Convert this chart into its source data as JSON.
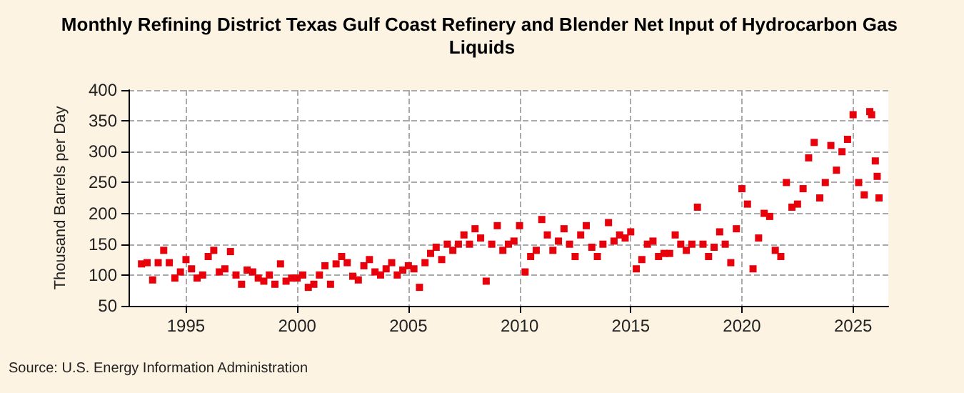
{
  "chart_data": {
    "type": "scatter",
    "title": "Monthly Refining District Texas Gulf Coast Refinery and Blender Net Input of Hydrocarbon Gas Liquids",
    "ylabel": "Thousand Barrels per Day",
    "annotations": [
      "Source: U.S. Energy Information Administration"
    ],
    "x": [
      "1993-01",
      "1993-04",
      "1993-07",
      "1993-10",
      "1994-01",
      "1994-04",
      "1994-07",
      "1994-10",
      "1995-01",
      "1995-04",
      "1995-07",
      "1995-10",
      "1996-01",
      "1996-04",
      "1996-07",
      "1996-10",
      "1997-01",
      "1997-04",
      "1997-07",
      "1997-10",
      "1998-01",
      "1998-04",
      "1998-07",
      "1998-10",
      "1999-01",
      "1999-04",
      "1999-07",
      "1999-10",
      "2000-01",
      "2000-04",
      "2000-07",
      "2000-10",
      "2001-01",
      "2001-04",
      "2001-07",
      "2001-10",
      "2002-01",
      "2002-04",
      "2002-07",
      "2002-10",
      "2003-01",
      "2003-04",
      "2003-07",
      "2003-10",
      "2004-01",
      "2004-04",
      "2004-07",
      "2004-10",
      "2005-01",
      "2005-04",
      "2005-07",
      "2005-10",
      "2006-01",
      "2006-04",
      "2006-07",
      "2006-10",
      "2007-01",
      "2007-04",
      "2007-07",
      "2007-10",
      "2008-01",
      "2008-04",
      "2008-07",
      "2008-10",
      "2009-01",
      "2009-04",
      "2009-07",
      "2009-10",
      "2010-01",
      "2010-04",
      "2010-07",
      "2010-10",
      "2011-01",
      "2011-04",
      "2011-07",
      "2011-10",
      "2012-01",
      "2012-04",
      "2012-07",
      "2012-10",
      "2013-01",
      "2013-04",
      "2013-07",
      "2013-10",
      "2014-01",
      "2014-04",
      "2014-07",
      "2014-10",
      "2015-01",
      "2015-04",
      "2015-07",
      "2015-10",
      "2016-01",
      "2016-04",
      "2016-07",
      "2016-10",
      "2017-01",
      "2017-04",
      "2017-07",
      "2017-10",
      "2018-01",
      "2018-04",
      "2018-07",
      "2018-10",
      "2019-01",
      "2019-04",
      "2019-07",
      "2019-10",
      "2020-01",
      "2020-04",
      "2020-07",
      "2020-10",
      "2021-01",
      "2021-04",
      "2021-07",
      "2021-10",
      "2022-01",
      "2022-04",
      "2022-07",
      "2022-10",
      "2023-01",
      "2023-04",
      "2023-07",
      "2023-10",
      "2024-01",
      "2024-04",
      "2024-07",
      "2024-10",
      "2025-01",
      "2025-04",
      "2025-07",
      "2025-10",
      "2025-11",
      "2026-01",
      "2026-02",
      "2026-03"
    ],
    "series": [
      {
        "color": "#e8000b",
        "values": [
          118,
          120,
          92,
          120,
          140,
          120,
          95,
          105,
          125,
          110,
          95,
          100,
          130,
          140,
          105,
          110,
          138,
          100,
          85,
          108,
          105,
          95,
          90,
          100,
          85,
          118,
          90,
          95,
          95,
          100,
          80,
          85,
          100,
          115,
          85,
          118,
          130,
          120,
          98,
          92,
          115,
          125,
          105,
          100,
          110,
          120,
          100,
          108,
          115,
          110,
          80,
          120,
          135,
          145,
          125,
          150,
          140,
          150,
          165,
          150,
          175,
          160,
          90,
          150,
          180,
          140,
          150,
          155,
          180,
          105,
          130,
          140,
          190,
          165,
          140,
          155,
          175,
          150,
          130,
          165,
          180,
          145,
          130,
          150,
          185,
          155,
          165,
          160,
          170,
          110,
          125,
          150,
          155,
          130,
          135,
          135,
          165,
          150,
          140,
          150,
          210,
          150,
          130,
          145,
          170,
          150,
          120,
          175,
          240,
          215,
          110,
          160,
          200,
          195,
          140,
          130,
          250,
          210,
          215,
          240,
          290,
          315,
          225,
          250,
          310,
          270,
          300,
          320,
          360,
          250,
          230,
          365,
          360,
          285,
          260,
          225
        ]
      }
    ],
    "xlim": [
      "1992-06",
      "2026-08"
    ],
    "xticks": [
      "1995",
      "2000",
      "2005",
      "2010",
      "2015",
      "2020",
      "2025"
    ],
    "ylim": [
      50,
      400
    ],
    "yticks": [
      50,
      100,
      150,
      200,
      250,
      300,
      350,
      400
    ],
    "grid": true,
    "marker": "square"
  }
}
